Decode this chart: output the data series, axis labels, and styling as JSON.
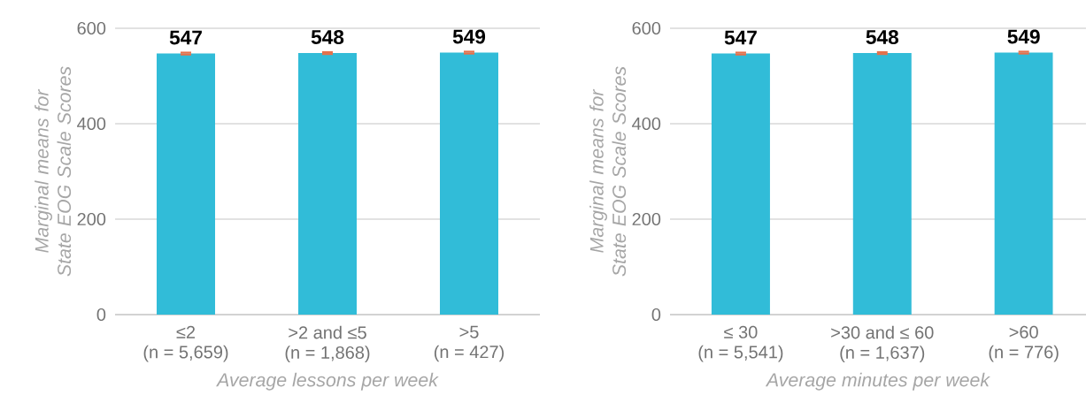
{
  "chart_data": [
    {
      "type": "bar",
      "xlabel": "Average lessons per week",
      "ylabel": "Marginal means for State EOG Scale Scores",
      "categories": [
        "≤2\n(n = 5,659)",
        ">2 and ≤5\n(n = 1,868)",
        ">5\n(n = 427)"
      ],
      "values": [
        547,
        548,
        549
      ],
      "errors": [
        4,
        4,
        4
      ],
      "color": "#31bcd8",
      "ylim": [
        0,
        600
      ],
      "yticks": [
        0,
        200,
        400,
        600
      ],
      "grid": "y",
      "data_labels": true
    },
    {
      "type": "bar",
      "xlabel": "Average minutes per week",
      "ylabel": "Marginal means for State EOG Scale Scores",
      "categories": [
        "≤ 30\n(n = 5,541)",
        ">30 and ≤ 60\n(n = 1,637)",
        ">60\n(n = 776)"
      ],
      "values": [
        547,
        548,
        549
      ],
      "errors": [
        4,
        4,
        4
      ],
      "color": "#31bcd8",
      "ylim": [
        0,
        600
      ],
      "yticks": [
        0,
        200,
        400,
        600
      ],
      "grid": "y",
      "data_labels": true
    }
  ]
}
